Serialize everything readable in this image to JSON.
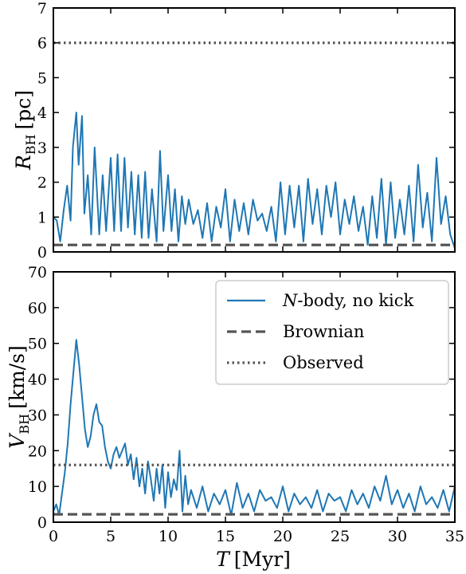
{
  "chart_data": [
    {
      "type": "line",
      "panel": "top",
      "xlim": [
        0,
        35
      ],
      "ylim": [
        0,
        7
      ],
      "yticks": [
        "0",
        "1",
        "2",
        "3",
        "4",
        "5",
        "6",
        "7"
      ],
      "xticks_labeled": false,
      "ylabel": {
        "main": "R",
        "sub": "BH",
        "unit": "[pc]"
      },
      "series": [
        {
          "name": "N-body, no kick",
          "color": "#1f77b4",
          "style": "solid",
          "x": [
            0,
            0.3,
            0.6,
            0.9,
            1.2,
            1.5,
            1.7,
            2.0,
            2.2,
            2.5,
            2.7,
            3.0,
            3.3,
            3.6,
            4.0,
            4.3,
            4.6,
            5.0,
            5.3,
            5.6,
            5.9,
            6.2,
            6.5,
            6.8,
            7.1,
            7.4,
            7.7,
            8.0,
            8.3,
            8.6,
            9.0,
            9.3,
            9.6,
            10.0,
            10.3,
            10.6,
            10.9,
            11.2,
            11.5,
            11.8,
            12.2,
            12.6,
            13.0,
            13.4,
            13.8,
            14.2,
            14.6,
            15.0,
            15.4,
            15.8,
            16.2,
            16.6,
            17.0,
            17.4,
            17.8,
            18.2,
            18.6,
            19.0,
            19.4,
            19.8,
            20.2,
            20.6,
            21.0,
            21.4,
            21.8,
            22.2,
            22.6,
            23.0,
            23.4,
            23.8,
            24.2,
            24.6,
            25.0,
            25.4,
            25.8,
            26.2,
            26.6,
            27.0,
            27.4,
            27.8,
            28.2,
            28.6,
            29.0,
            29.4,
            29.8,
            30.2,
            30.6,
            31.0,
            31.4,
            31.8,
            32.2,
            32.6,
            33.0,
            33.4,
            33.8,
            34.2,
            34.6,
            35.0
          ],
          "values": [
            1.0,
            0.9,
            0.3,
            1.2,
            1.9,
            0.9,
            3.0,
            4.0,
            2.5,
            3.9,
            1.1,
            2.2,
            0.5,
            3.0,
            0.5,
            2.2,
            0.6,
            2.7,
            0.6,
            2.8,
            0.6,
            2.7,
            0.7,
            2.3,
            0.5,
            2.2,
            0.4,
            2.3,
            0.4,
            1.8,
            0.3,
            2.9,
            0.6,
            2.2,
            0.6,
            1.8,
            0.3,
            1.6,
            0.8,
            1.5,
            0.8,
            1.2,
            0.4,
            1.4,
            0.3,
            1.3,
            0.7,
            1.8,
            0.3,
            1.5,
            0.6,
            1.4,
            0.5,
            1.5,
            0.9,
            1.1,
            0.6,
            1.3,
            0.3,
            2.0,
            0.5,
            1.9,
            0.7,
            1.9,
            0.3,
            2.1,
            0.8,
            1.8,
            0.5,
            1.9,
            1.0,
            2.0,
            0.5,
            1.5,
            0.8,
            1.6,
            0.6,
            1.3,
            0.2,
            1.6,
            0.4,
            2.1,
            0.2,
            2.0,
            0.4,
            1.5,
            0.5,
            1.9,
            0.3,
            2.5,
            0.7,
            1.7,
            0.3,
            2.7,
            0.8,
            1.6,
            0.5,
            0.1
          ]
        },
        {
          "name": "Brownian",
          "color": "#555555",
          "style": "dashed",
          "constant": 0.2
        },
        {
          "name": "Observed",
          "color": "#555555",
          "style": "dotted",
          "constant": 6
        }
      ]
    },
    {
      "type": "line",
      "panel": "bottom",
      "xlim": [
        0,
        35
      ],
      "ylim": [
        0,
        70
      ],
      "xticks": [
        "0",
        "5",
        "10",
        "15",
        "20",
        "25",
        "30",
        "35"
      ],
      "yticks": [
        "0",
        "10",
        "20",
        "30",
        "40",
        "50",
        "60",
        "70"
      ],
      "xlabel": {
        "var": "T",
        "unit": "[Myr]"
      },
      "ylabel": {
        "main": "V",
        "sub": "BH",
        "unit": "[km/s]"
      },
      "series": [
        {
          "name": "N-body, no kick",
          "color": "#1f77b4",
          "style": "solid",
          "x": [
            0,
            0.25,
            0.5,
            0.75,
            1.0,
            1.25,
            1.5,
            1.75,
            2.0,
            2.25,
            2.5,
            2.75,
            3.0,
            3.25,
            3.5,
            3.75,
            4.0,
            4.25,
            4.5,
            4.75,
            5.0,
            5.25,
            5.5,
            5.75,
            6.0,
            6.25,
            6.5,
            6.75,
            7.0,
            7.25,
            7.5,
            7.75,
            8.0,
            8.25,
            8.5,
            8.75,
            9.0,
            9.25,
            9.5,
            9.75,
            10.0,
            10.25,
            10.5,
            10.75,
            11.0,
            11.25,
            11.5,
            11.75,
            12.0,
            12.5,
            13.0,
            13.5,
            14.0,
            14.5,
            15.0,
            15.5,
            16.0,
            16.5,
            17.0,
            17.5,
            18.0,
            18.5,
            19.0,
            19.5,
            20.0,
            20.5,
            21.0,
            21.5,
            22.0,
            22.5,
            23.0,
            23.5,
            24.0,
            24.5,
            25.0,
            25.5,
            26.0,
            26.5,
            27.0,
            27.5,
            28.0,
            28.5,
            29.0,
            29.5,
            30.0,
            30.5,
            31.0,
            31.5,
            32.0,
            32.5,
            33.0,
            33.5,
            34.0,
            34.5,
            35.0
          ],
          "values": [
            3,
            5,
            2,
            8,
            14,
            22,
            33,
            42,
            51,
            44,
            35,
            26,
            21,
            24,
            30,
            33,
            28,
            27,
            21,
            17,
            15,
            19,
            21,
            18,
            20,
            22,
            16,
            19,
            12,
            18,
            10,
            15,
            8,
            17,
            12,
            6,
            15,
            8,
            16,
            4,
            14,
            7,
            12,
            9,
            20,
            3,
            13,
            5,
            9,
            4,
            10,
            3,
            8,
            5,
            9,
            2,
            11,
            4,
            8,
            3,
            9,
            6,
            7,
            4,
            10,
            3,
            8,
            5,
            7,
            4,
            9,
            3,
            8,
            6,
            7,
            3,
            9,
            5,
            8,
            4,
            10,
            6,
            13,
            5,
            9,
            4,
            8,
            3,
            10,
            5,
            7,
            4,
            9,
            3,
            10
          ]
        },
        {
          "name": "Brownian",
          "color": "#555555",
          "style": "dashed",
          "constant": 2.2
        },
        {
          "name": "Observed",
          "color": "#555555",
          "style": "dotted",
          "constant": 16
        }
      ]
    }
  ],
  "legend": {
    "placement": "top-right",
    "entries": [
      {
        "label_italic": "N",
        "label_rest": "-body, no kick",
        "color": "#1f77b4",
        "style": "solid"
      },
      {
        "label_italic": "",
        "label_rest": "Brownian",
        "color": "#555555",
        "style": "dashed"
      },
      {
        "label_italic": "",
        "label_rest": "Observed",
        "color": "#555555",
        "style": "dotted"
      }
    ]
  }
}
